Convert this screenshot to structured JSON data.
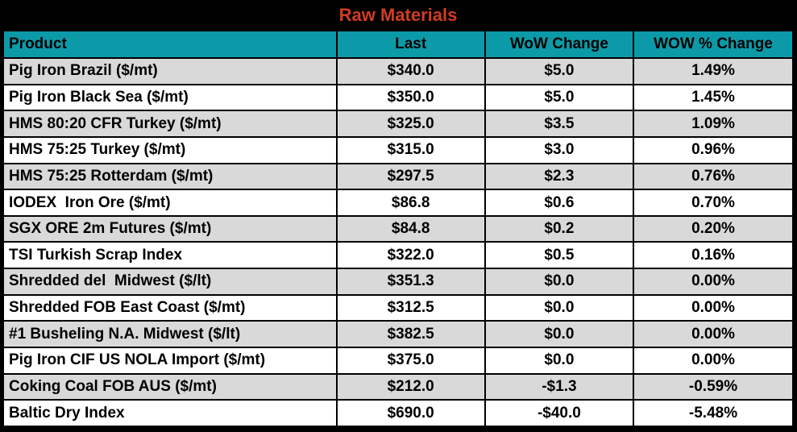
{
  "title": "Raw Materials",
  "colors": {
    "frame_bg": "#000000",
    "title_text": "#D13C21",
    "header_bg": "#0D9AA8",
    "row_alt_bg": "#D9D9D9",
    "row_bg": "#FFFFFF",
    "cell_text": "#000000"
  },
  "chart_data": {
    "type": "table",
    "title": "Raw Materials",
    "columns": [
      "Product",
      "Last",
      "WoW Change",
      "WOW % Change"
    ],
    "rows": [
      [
        "Pig Iron Brazil ($/mt)",
        "$340.0",
        "$5.0",
        "1.49%"
      ],
      [
        "Pig Iron Black Sea ($/mt)",
        "$350.0",
        "$5.0",
        "1.45%"
      ],
      [
        "HMS 80:20 CFR Turkey ($/mt)",
        "$325.0",
        "$3.5",
        "1.09%"
      ],
      [
        "HMS 75:25 Turkey ($/mt)",
        "$315.0",
        "$3.0",
        "0.96%"
      ],
      [
        "HMS 75:25 Rotterdam ($/mt)",
        "$297.5",
        "$2.3",
        "0.76%"
      ],
      [
        "IODEX  Iron Ore ($/mt)",
        "$86.8",
        "$0.6",
        "0.70%"
      ],
      [
        "SGX ORE 2m Futures ($/mt)",
        "$84.8",
        "$0.2",
        "0.20%"
      ],
      [
        "TSI Turkish Scrap Index",
        "$322.0",
        "$0.5",
        "0.16%"
      ],
      [
        "Shredded del  Midwest ($/lt)",
        "$351.3",
        "$0.0",
        "0.00%"
      ],
      [
        "Shredded FOB East Coast ($/mt)",
        "$312.5",
        "$0.0",
        "0.00%"
      ],
      [
        "#1 Busheling N.A. Midwest ($/lt)",
        "$382.5",
        "$0.0",
        "0.00%"
      ],
      [
        "Pig Iron CIF US NOLA Import ($/mt)",
        "$375.0",
        "$0.0",
        "0.00%"
      ],
      [
        "Coking Coal FOB AUS ($/mt)",
        "$212.0",
        "-$1.3",
        "-0.59%"
      ],
      [
        "Baltic Dry Index",
        "$690.0",
        "-$40.0",
        "-5.48%"
      ]
    ]
  }
}
